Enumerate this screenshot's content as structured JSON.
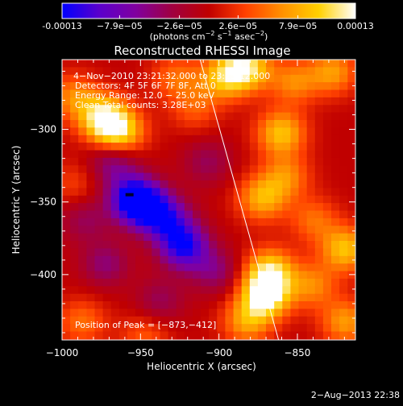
{
  "colorbar": {
    "tick_labels": [
      "-0.00013",
      "−7.9e−05",
      "−2.6e−05",
      "2.6e−05",
      "7.9e−05",
      "0.00013"
    ],
    "tick_values": [
      -0.00013,
      -7.9e-05,
      -2.6e-05,
      2.6e-05,
      7.9e-05,
      0.00013
    ],
    "range": [
      -0.00013,
      0.00013
    ],
    "units_prefix": "(photons cm",
    "units_sup1": "−2",
    "units_mid": " s",
    "units_sup2": "−1",
    "units_mid2": " asec",
    "units_sup3": "−2",
    "units_suffix": ")",
    "stops": [
      "#0000ff",
      "#5a00cc",
      "#8000a0",
      "#a00040",
      "#c00000",
      "#ff4000",
      "#ff9000",
      "#ffd000",
      "#ffffff"
    ]
  },
  "chart_data": {
    "type": "heatmap",
    "title": "Reconstructed RHESSI Image",
    "xlabel": "Heliocentric X (arcsec)",
    "ylabel": "Heliocentric Y (arcsec)",
    "xlim": [
      -1000,
      -813
    ],
    "ylim": [
      -445,
      -252
    ],
    "x_ticks": [
      -1000,
      -950,
      -900,
      -850
    ],
    "x_tick_labels": [
      "−1000",
      "−950",
      "−900",
      "−850"
    ],
    "y_ticks": [
      -300,
      -350,
      -400
    ],
    "y_tick_labels": [
      "−300",
      "−350",
      "−400"
    ],
    "limb_line": [
      [
        -912,
        -252
      ],
      [
        -862,
        -445
      ]
    ],
    "peak": [
      -873,
      -412
    ],
    "features": [
      {
        "x": -957,
        "y": -345,
        "value": -0.00013
      },
      {
        "x": -948,
        "y": -352,
        "value": -9e-05
      },
      {
        "x": -925,
        "y": -378,
        "value": -0.00012
      },
      {
        "x": -935,
        "y": -360,
        "value": -8e-05
      },
      {
        "x": -970,
        "y": -320,
        "value": -6e-05
      },
      {
        "x": -975,
        "y": -390,
        "value": -5e-05
      },
      {
        "x": -940,
        "y": -415,
        "value": -4e-05
      },
      {
        "x": -910,
        "y": -320,
        "value": -4e-05
      },
      {
        "x": -905,
        "y": -395,
        "value": -5e-05
      },
      {
        "x": -988,
        "y": -360,
        "value": -4e-05
      },
      {
        "x": -873,
        "y": -412,
        "value": 0.00013
      },
      {
        "x": -870,
        "y": -395,
        "value": 0.0001
      },
      {
        "x": -885,
        "y": -430,
        "value": 7e-05
      },
      {
        "x": -976,
        "y": -290,
        "value": 0.00012
      },
      {
        "x": -965,
        "y": -300,
        "value": 9e-05
      },
      {
        "x": -995,
        "y": -275,
        "value": 6e-05
      },
      {
        "x": -885,
        "y": -255,
        "value": 0.00011
      },
      {
        "x": -900,
        "y": -262,
        "value": 8e-05
      },
      {
        "x": -855,
        "y": -265,
        "value": 6e-05
      },
      {
        "x": -830,
        "y": -258,
        "value": 7e-05
      },
      {
        "x": -863,
        "y": -300,
        "value": 9e-05
      },
      {
        "x": -875,
        "y": -345,
        "value": 8e-05
      },
      {
        "x": -860,
        "y": -330,
        "value": 6e-05
      },
      {
        "x": -842,
        "y": -360,
        "value": 5e-05
      },
      {
        "x": -822,
        "y": -380,
        "value": 9e-05
      },
      {
        "x": -843,
        "y": -405,
        "value": 6e-05
      },
      {
        "x": -822,
        "y": -430,
        "value": 7e-05
      },
      {
        "x": -918,
        "y": -283,
        "value": 4e-05
      },
      {
        "x": -990,
        "y": -430,
        "value": 5e-05
      },
      {
        "x": -995,
        "y": -335,
        "value": 3e-05
      },
      {
        "x": -930,
        "y": -262,
        "value": 5e-05
      },
      {
        "x": -950,
        "y": -440,
        "value": 4e-05
      }
    ]
  },
  "overlay": {
    "time_range": "4−Nov−2010 23:21:32.000 to 23:25:12.000",
    "detectors": "Detectors: 4F 5F 6F 7F 8F, Att 0",
    "energy_range": "Energy Range: 12.0 − 25.0 keV",
    "clean": "Clean    Total counts: 3.28E+03",
    "peak": "Position of Peak = [−873,−412]"
  },
  "footer": {
    "timestamp": "2−Aug−2013 22:38"
  }
}
